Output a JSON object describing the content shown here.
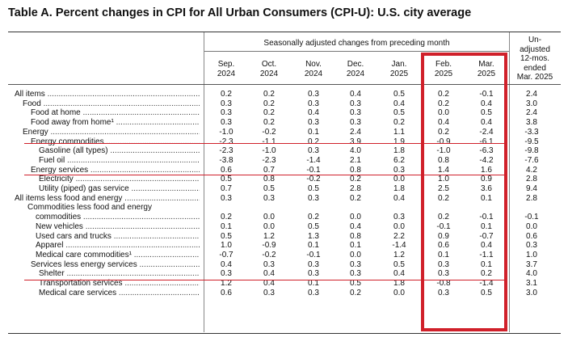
{
  "title": "Table A. Percent changes in CPI for All Urban Consumers (CPI-U): U.S. city average",
  "group_header": "Seasonally adjusted changes from preceding month",
  "columns": [
    "Sep.\n2024",
    "Oct.\n2024",
    "Nov.\n2024",
    "Dec.\n2024",
    "Jan.\n2025",
    "Feb.\n2025",
    "Mar.\n2025"
  ],
  "unadjusted_header": "Un-\nadjusted\n12-mos.\nended\nMar. 2025",
  "highlight_color": "#d0202a",
  "rows": [
    {
      "label": "All items",
      "values": [
        "0.2",
        "0.2",
        "0.3",
        "0.4",
        "0.5",
        "0.2",
        "-0.1",
        "2.4"
      ]
    },
    {
      "label": "Food",
      "values": [
        "0.3",
        "0.2",
        "0.3",
        "0.3",
        "0.4",
        "0.2",
        "0.4",
        "3.0"
      ]
    },
    {
      "label": "Food at home",
      "values": [
        "0.3",
        "0.2",
        "0.4",
        "0.3",
        "0.5",
        "0.0",
        "0.5",
        "2.4"
      ]
    },
    {
      "label": "Food away from home¹",
      "values": [
        "0.3",
        "0.2",
        "0.3",
        "0.3",
        "0.2",
        "0.4",
        "0.4",
        "3.8"
      ]
    },
    {
      "label": "Energy",
      "values": [
        "-1.0",
        "-0.2",
        "0.1",
        "2.4",
        "1.1",
        "0.2",
        "-2.4",
        "-3.3"
      ]
    },
    {
      "label": "Energy commodities",
      "values": [
        "-2.3",
        "-1.1",
        "0.2",
        "3.9",
        "1.9",
        "-0.9",
        "-6.1",
        "-9.5"
      ]
    },
    {
      "label": "Gasoline (all types)",
      "values": [
        "-2.3",
        "-1.0",
        "0.3",
        "4.0",
        "1.8",
        "-1.0",
        "-6.3",
        "-9.8"
      ]
    },
    {
      "label": "Fuel oil",
      "values": [
        "-3.8",
        "-2.3",
        "-1.4",
        "2.1",
        "6.2",
        "0.8",
        "-4.2",
        "-7.6"
      ]
    },
    {
      "label": "Energy services",
      "values": [
        "0.6",
        "0.7",
        "-0.1",
        "0.8",
        "0.3",
        "1.4",
        "1.6",
        "4.2"
      ]
    },
    {
      "label": "Electricity",
      "values": [
        "0.5",
        "0.8",
        "-0.2",
        "0.2",
        "0.0",
        "1.0",
        "0.9",
        "2.8"
      ]
    },
    {
      "label": "Utility (piped) gas service",
      "values": [
        "0.7",
        "0.5",
        "0.5",
        "2.8",
        "1.8",
        "2.5",
        "3.6",
        "9.4"
      ]
    },
    {
      "label": "All items less food and energy",
      "values": [
        "0.3",
        "0.3",
        "0.3",
        "0.2",
        "0.4",
        "0.2",
        "0.1",
        "2.8"
      ]
    },
    {
      "label": "Commodities less food and energy",
      "values": [
        "",
        "",
        "",
        "",
        "",
        "",
        "",
        ""
      ]
    },
    {
      "label": "commodities",
      "values": [
        "0.2",
        "0.0",
        "0.2",
        "0.0",
        "0.3",
        "0.2",
        "-0.1",
        "-0.1"
      ]
    },
    {
      "label": "New vehicles",
      "values": [
        "0.1",
        "0.0",
        "0.5",
        "0.4",
        "0.0",
        "-0.1",
        "0.1",
        "0.0"
      ]
    },
    {
      "label": "Used cars and trucks",
      "values": [
        "0.5",
        "1.2",
        "1.3",
        "0.8",
        "2.2",
        "0.9",
        "-0.7",
        "0.6"
      ]
    },
    {
      "label": "Apparel",
      "values": [
        "1.0",
        "-0.9",
        "0.1",
        "0.1",
        "-1.4",
        "0.6",
        "0.4",
        "0.3"
      ]
    },
    {
      "label": "Medical care commodities¹",
      "values": [
        "-0.7",
        "-0.2",
        "-0.1",
        "0.0",
        "1.2",
        "0.1",
        "-1.1",
        "1.0"
      ]
    },
    {
      "label": "Services less energy services",
      "values": [
        "0.4",
        "0.3",
        "0.3",
        "0.3",
        "0.5",
        "0.3",
        "0.1",
        "3.7"
      ]
    },
    {
      "label": "Shelter",
      "values": [
        "0.3",
        "0.4",
        "0.3",
        "0.3",
        "0.4",
        "0.3",
        "0.2",
        "4.0"
      ]
    },
    {
      "label": "Transportation services",
      "values": [
        "1.2",
        "0.4",
        "0.1",
        "0.5",
        "1.8",
        "-0.8",
        "-1.4",
        "3.1"
      ]
    },
    {
      "label": "Medical care services",
      "values": [
        "0.6",
        "0.3",
        "0.3",
        "0.2",
        "0.0",
        "0.3",
        "0.5",
        "3.0"
      ]
    }
  ]
}
